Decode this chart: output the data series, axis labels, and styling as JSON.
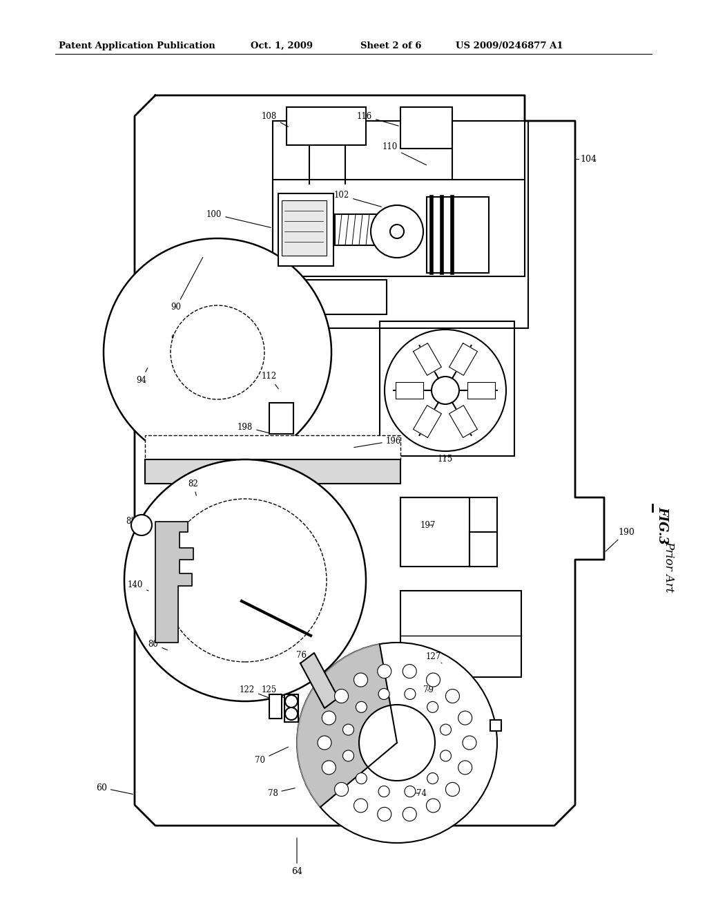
{
  "background_color": "#ffffff",
  "header_text": "Patent Application Publication",
  "header_date": "Oct. 1, 2009",
  "header_sheet": "Sheet 2 of 6",
  "header_patent": "US 2009/0246877 A1",
  "fig_label": "FIG.3",
  "fig_sublabel": "Prior Art",
  "line_color": "#000000",
  "lw": 1.5
}
